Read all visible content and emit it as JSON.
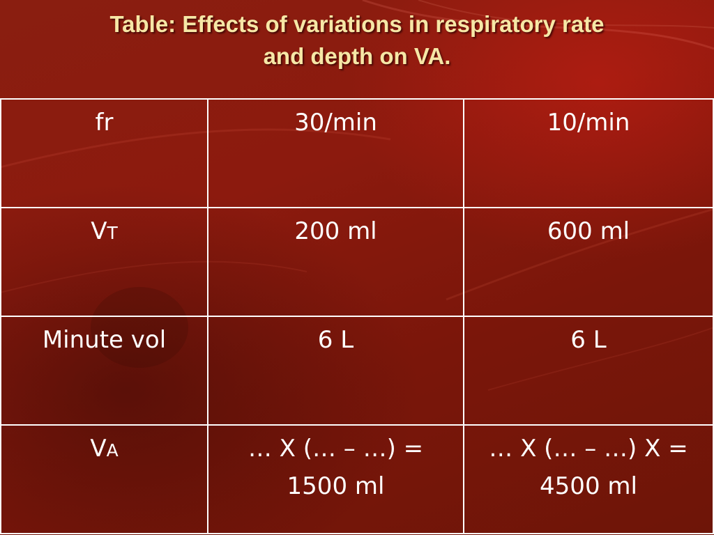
{
  "slide": {
    "title_line1": "Table: Effects of variations in respiratory rate",
    "title_line2": "and depth on VA."
  },
  "table": {
    "rows": [
      {
        "label_main": "fr",
        "label_sub": "",
        "col1": "30/min",
        "col2": "10/min"
      },
      {
        "label_main": "V",
        "label_sub": "T",
        "col1": "200 ml",
        "col2": "600 ml"
      },
      {
        "label_main": "Minute vol",
        "label_sub": "",
        "col1": "6 L",
        "col2": "6 L"
      },
      {
        "label_main": "V",
        "label_sub": "A",
        "col1_line1": "… X (… – …) =",
        "col1_line2": "1500 ml",
        "col2_line1": "… X (… – …) X =",
        "col2_line2": "4500 ml"
      }
    ]
  },
  "colors": {
    "title": "#f6e7a6",
    "background": "#7e1a0c",
    "table_text": "#ffffff",
    "table_border": "#ffffff"
  }
}
